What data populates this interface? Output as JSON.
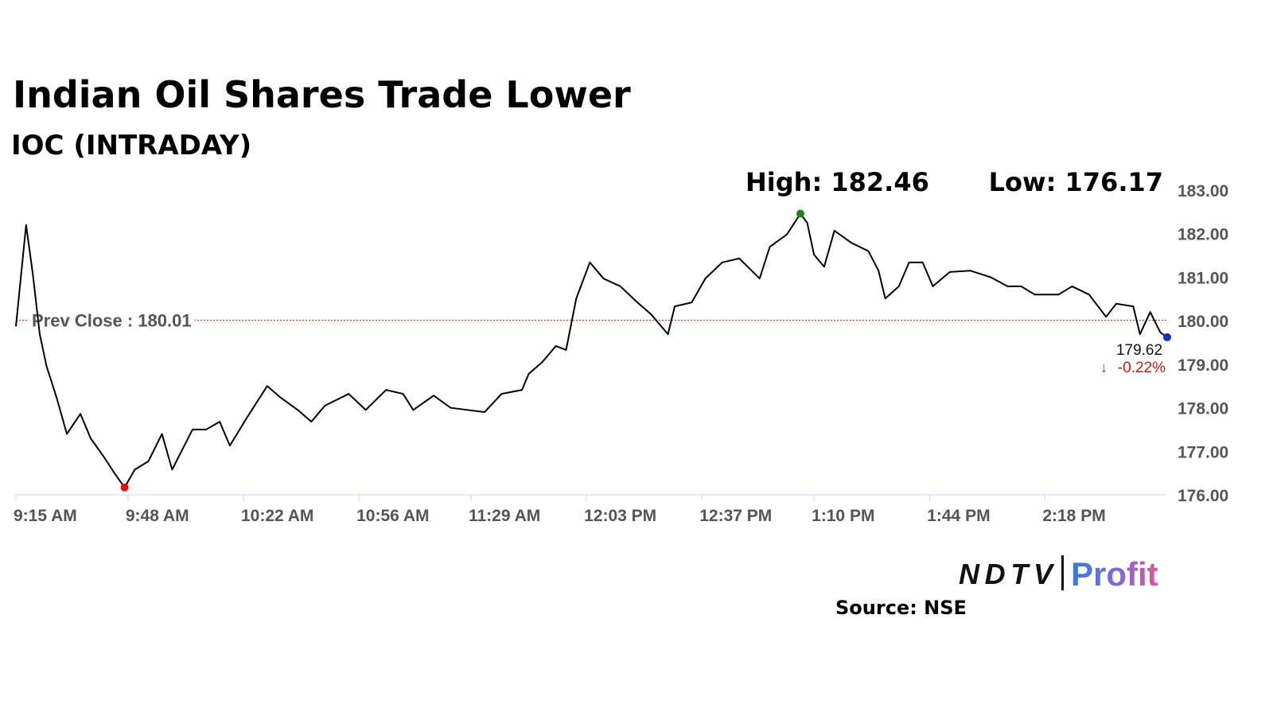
{
  "chart_data": {
    "type": "line",
    "title": "Indian Oil Shares Trade Lower",
    "subtitle": "IOC (INTRADAY)",
    "high": {
      "value": 182.46,
      "label": "High: 182.46"
    },
    "low": {
      "value": 176.17,
      "label": "Low: 176.17"
    },
    "prev_close": {
      "value": 180.01,
      "label": "Prev Close : 180.01"
    },
    "last": 179.62,
    "change": {
      "value": -0.22,
      "label": "-0.22%"
    },
    "source": "Source: NSE",
    "logo": {
      "brand": "NDTV",
      "product": "Profit"
    },
    "color": "#000000",
    "x": [
      "9:15 AM",
      "9:18 AM",
      "9:20 AM",
      "9:22 AM",
      "9:24 AM",
      "9:27 AM",
      "9:30 AM",
      "9:34 AM",
      "9:37 AM",
      "9:41 AM",
      "9:44 AM",
      "9:47 AM",
      "9:50 AM",
      "9:54 AM",
      "9:58 AM",
      "10:01 AM",
      "10:07 AM",
      "10:11 AM",
      "10:15 AM",
      "10:18 AM",
      "10:23 AM",
      "10:29 AM",
      "10:33 AM",
      "10:38 AM",
      "10:42 AM",
      "10:46 AM",
      "10:53 AM",
      "10:58 AM",
      "11:04 AM",
      "11:09 AM",
      "11:12 AM",
      "11:18 AM",
      "11:23 AM",
      "11:28 AM",
      "11:33 AM",
      "11:38 AM",
      "11:44 AM",
      "11:46 AM",
      "11:50 AM",
      "11:54 AM",
      "11:57 AM",
      "12:00 PM",
      "12:04 PM",
      "12:08 PM",
      "12:13 PM",
      "12:18 PM",
      "12:22 PM",
      "12:27 PM",
      "12:29 PM",
      "12:34 PM",
      "12:38 PM",
      "12:43 PM",
      "12:48 PM",
      "12:54 PM",
      "12:57 PM",
      "1:02 PM",
      "1:06 PM",
      "1:08 PM",
      "1:10 PM",
      "1:13 PM",
      "1:16 PM",
      "1:21 PM",
      "1:26 PM",
      "1:29 PM",
      "1:31 PM",
      "1:35 PM",
      "1:38 PM",
      "1:42 PM",
      "1:45 PM",
      "1:50 PM",
      "1:56 PM",
      "2:02 PM",
      "2:07 PM",
      "2:11 PM",
      "2:15 PM",
      "2:22 PM",
      "2:26 PM",
      "2:31 PM",
      "2:36 PM",
      "2:39 PM",
      "2:44 PM",
      "2:46 PM",
      "2:49 PM",
      "2:52 PM",
      "2:54 PM"
    ],
    "values": [
      179.87,
      182.2,
      181.06,
      179.7,
      178.96,
      178.23,
      177.4,
      177.86,
      177.3,
      176.86,
      176.5,
      176.17,
      176.58,
      176.77,
      177.4,
      176.58,
      177.5,
      177.5,
      177.68,
      177.13,
      177.77,
      178.5,
      178.23,
      177.95,
      177.68,
      178.05,
      178.32,
      177.95,
      178.41,
      178.32,
      177.95,
      178.28,
      178.0,
      177.95,
      177.9,
      178.32,
      178.41,
      178.78,
      179.05,
      179.42,
      179.33,
      180.51,
      181.34,
      180.97,
      180.79,
      180.42,
      180.15,
      179.69,
      180.33,
      180.42,
      180.97,
      181.34,
      181.43,
      180.97,
      181.7,
      181.98,
      182.46,
      182.25,
      181.52,
      181.24,
      182.07,
      181.79,
      181.6,
      181.15,
      180.51,
      180.79,
      181.34,
      181.34,
      180.79,
      181.12,
      181.15,
      181.0,
      180.79,
      180.79,
      180.6,
      180.6,
      180.79,
      180.6,
      180.09,
      180.39,
      180.33,
      179.69,
      180.2,
      179.73,
      179.62
    ],
    "xlim": [
      "9:15 AM",
      "2:54 PM"
    ],
    "xticks": [
      "9:15 AM",
      "9:48 AM",
      "10:22 AM",
      "10:56 AM",
      "11:29 AM",
      "12:03 PM",
      "12:37 PM",
      "1:10 PM",
      "1:44 PM",
      "2:18 PM"
    ],
    "ylim": [
      176,
      183
    ],
    "yticks": [
      {
        "value": 176,
        "label": "176.00"
      },
      {
        "value": 177,
        "label": "177.00"
      },
      {
        "value": 178,
        "label": "178.00"
      },
      {
        "value": 179,
        "label": "179.00"
      },
      {
        "value": 180,
        "label": "180.00"
      },
      {
        "value": 181,
        "label": "181.00"
      },
      {
        "value": 182,
        "label": "182.00"
      },
      {
        "value": 183,
        "label": "183.00"
      }
    ],
    "grid": false
  }
}
